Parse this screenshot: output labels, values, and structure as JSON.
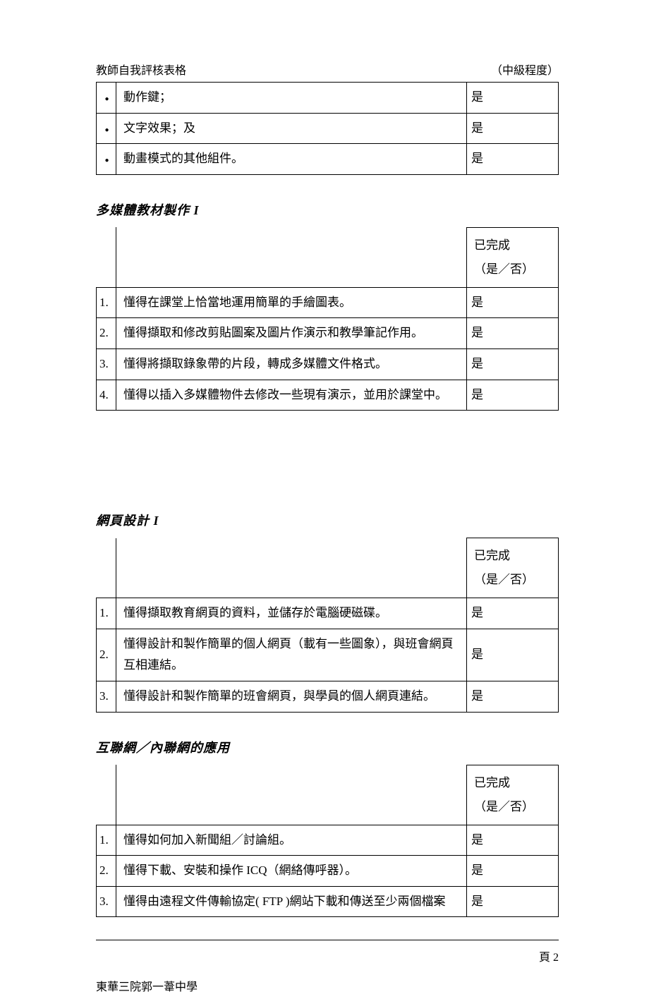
{
  "header": {
    "left": "教師自我評核表格",
    "right": "（中級程度）"
  },
  "top_table": {
    "rows": [
      {
        "text": "動作鍵；",
        "status": "是"
      },
      {
        "text": "文字效果；及",
        "status": "是"
      },
      {
        "text": "動畫模式的其他組件。",
        "status": "是"
      }
    ]
  },
  "section1": {
    "title": "多媒體教材製作  I",
    "head_line1": "已完成",
    "head_line2": "（是／否）",
    "rows": [
      {
        "num": "1.",
        "text": "懂得在課堂上恰當地運用簡單的手繪圖表。",
        "status": "是"
      },
      {
        "num": "2.",
        "text": "懂得擷取和修改剪貼圖案及圖片作演示和教學筆記作用。",
        "status": "是"
      },
      {
        "num": "3.",
        "text": "懂得將擷取錄象帶的片段，轉成多媒體文件格式。",
        "status": "是"
      },
      {
        "num": "4.",
        "text": "懂得以插入多媒體物件去修改一些現有演示，並用於課堂中。",
        "status": "是"
      }
    ]
  },
  "section2": {
    "title": "網頁設計  I",
    "head_line1": "已完成",
    "head_line2": "（是／否）",
    "rows": [
      {
        "num": "1.",
        "text": "懂得擷取教育網頁的資料，並儲存於電腦硬磁碟。",
        "status": "是"
      },
      {
        "num": "2.",
        "text": "懂得設計和製作簡單的個人網頁（載有一些圖象），與班會網頁互相連結。",
        "status": "是"
      },
      {
        "num": "3.",
        "text": "懂得設計和製作簡單的班會網頁，與學員的個人網頁連結。",
        "status": "是"
      }
    ]
  },
  "section3": {
    "title": "互聯網／內聯網的應用",
    "head_line1": "已完成",
    "head_line2": "（是／否）",
    "rows": [
      {
        "num": "1.",
        "text": "懂得如何加入新聞組／討論組。",
        "status": "是"
      },
      {
        "num": "2.",
        "text": "懂得下載、安裝和操作 ICQ（網絡傳呼器）。",
        "status": "是"
      },
      {
        "num": "3.",
        "text": "懂得由遠程文件傳輸協定( FTP )網站下載和傳送至少兩個檔案",
        "status": "是"
      }
    ]
  },
  "footer": {
    "page": "頁 2",
    "school": "東華三院郭一葦中學"
  }
}
